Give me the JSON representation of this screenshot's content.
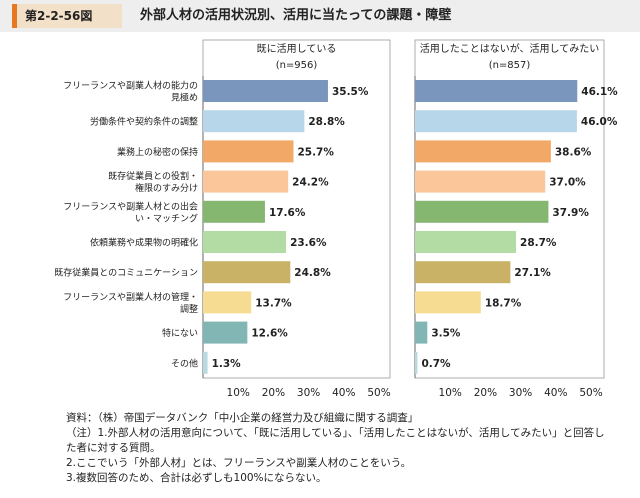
{
  "figure_number": "第2-2-56図",
  "title": "外部人材の活用状況別、活用に当たっての課題・障壁",
  "chart_data": {
    "type": "bar",
    "orientation": "horizontal",
    "categories": [
      "フリーランスや副業人材の能力の見極め",
      "労働条件や契約条件の調整",
      "業務上の秘密の保持",
      "既存従業員との役割・権限のすみ分け",
      "フリーランスや副業人材との出会い・マッチング",
      "依頼業務や成果物の明確化",
      "既存従業員とのコミュニケーション",
      "フリーランスや副業人材の管理・調整",
      "特にない",
      "その他"
    ],
    "category_lines": [
      [
        "フリーランスや副業人材の能力の",
        "見極め"
      ],
      [
        "労働条件や契約条件の調整"
      ],
      [
        "業務上の秘密の保持"
      ],
      [
        "既存従業員との役割・",
        "権限のすみ分け"
      ],
      [
        "フリーランスや副業人材との出会",
        "い・マッチング"
      ],
      [
        "依頼業務や成果物の明確化"
      ],
      [
        "既存従業員とのコミュニケーション"
      ],
      [
        "フリーランスや副業人材の管理・",
        "調整"
      ],
      [
        "特にない"
      ],
      [
        "その他"
      ]
    ],
    "colors": [
      "#7a96bd",
      "#b8d6ea",
      "#f2a866",
      "#fbc79a",
      "#86b771",
      "#b2dca3",
      "#c9b266",
      "#f6dc92",
      "#82b6b4",
      "#b8d9dd"
    ],
    "series": [
      {
        "name": "既に活用している",
        "n_label": "(n=956)",
        "values": [
          35.5,
          28.8,
          25.7,
          24.2,
          17.6,
          23.6,
          24.8,
          13.7,
          12.6,
          1.3
        ],
        "labels": [
          "35.5%",
          "28.8%",
          "25.7%",
          "24.2%",
          "17.6%",
          "23.6%",
          "24.8%",
          "13.7%",
          "12.6%",
          "1.3%"
        ]
      },
      {
        "name": "活用したことはないが、活用してみたい",
        "n_label": "(n=857)",
        "values": [
          46.1,
          46.0,
          38.6,
          37.0,
          37.9,
          28.7,
          27.1,
          18.7,
          3.5,
          0.7
        ],
        "labels": [
          "46.1%",
          "46.0%",
          "38.6%",
          "37.0%",
          "37.9%",
          "28.7%",
          "27.1%",
          "18.7%",
          "3.5%",
          "0.7%"
        ]
      }
    ],
    "xlim": [
      0,
      50
    ],
    "xticks": [
      "10%",
      "20%",
      "30%",
      "40%",
      "50%"
    ]
  },
  "notes": [
    "資料：（株）帝国データバンク「中小企業の経営力及び組織に関する調査」",
    "（注）1.外部人材の活用意向について、「既に活用している」、「活用したことはないが、活用してみたい」と回答し",
    "た者に対する質問。",
    "2.ここでいう「外部人材」とは、フリーランスや副業人材のことをいう。",
    "3.複数回答のため、合計は必ずしも100%にならない。"
  ]
}
